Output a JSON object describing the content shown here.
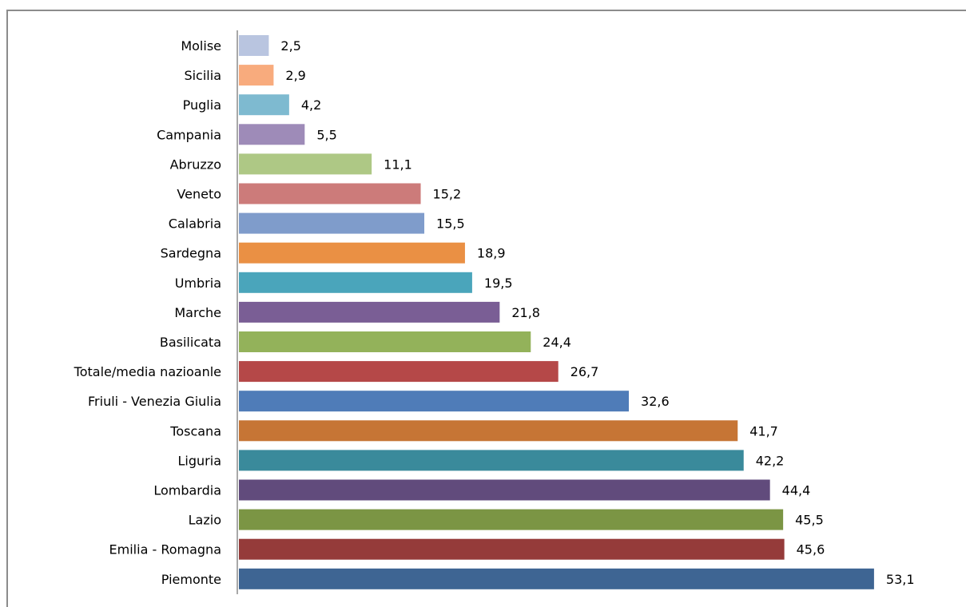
{
  "chart_data": {
    "type": "bar",
    "orientation": "horizontal",
    "categories": [
      "Molise",
      "Sicilia",
      "Puglia",
      "Campania",
      "Abruzzo",
      "Veneto",
      "Calabria",
      "Sardegna",
      "Umbria",
      "Marche",
      "Basilicata",
      "Totale/media nazioanle",
      "Friuli - Venezia Giulia",
      "Toscana",
      "Liguria",
      "Lombardia",
      "Lazio",
      "Emilia - Romagna",
      "Piemonte"
    ],
    "values": [
      2.5,
      2.9,
      4.2,
      5.5,
      11.1,
      15.2,
      15.5,
      18.9,
      19.5,
      21.8,
      24.4,
      26.7,
      32.6,
      41.7,
      42.2,
      44.4,
      45.5,
      45.6,
      53.1
    ],
    "value_labels": [
      "2,5",
      "2,9",
      "4,2",
      "5,5",
      "11,1",
      "15,2",
      "15,5",
      "18,9",
      "19,5",
      "21,8",
      "24,4",
      "26,7",
      "32,6",
      "41,7",
      "42,2",
      "44,4",
      "45,5",
      "45,6",
      "53,1"
    ],
    "colors": [
      "#b9c5e0",
      "#f8ab7d",
      "#7ebad0",
      "#9e8bb8",
      "#aec885",
      "#cc7b7a",
      "#7f9ccb",
      "#ea9044",
      "#4aa5bb",
      "#7a5e95",
      "#93b25a",
      "#b54848",
      "#4f7cb8",
      "#c67535",
      "#3a8a9b",
      "#614b7c",
      "#7b9544",
      "#953b3a",
      "#3e6593"
    ],
    "title": "",
    "xlabel": "",
    "ylabel": "",
    "xlim": [
      0,
      55
    ],
    "grid": false,
    "legend": "none"
  }
}
